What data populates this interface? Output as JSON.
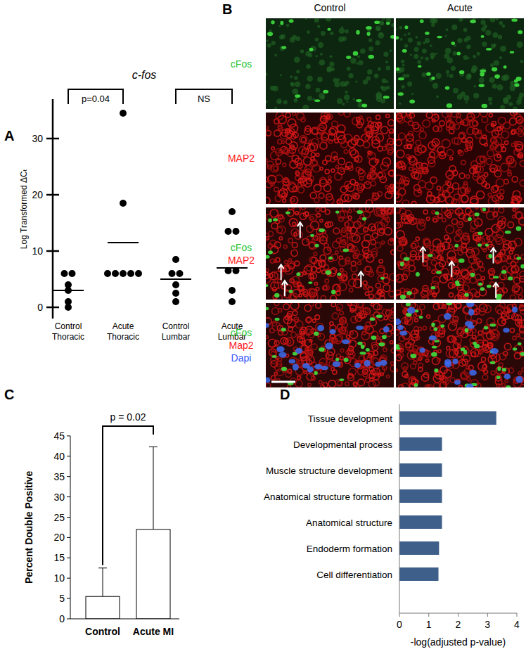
{
  "chart_data": [
    {
      "panel": "A",
      "type": "dot",
      "title": "c-fos",
      "ylabel": "Log Transformed ΔCₜ",
      "categories": [
        "Control Thoracic",
        "Acute Thoracic",
        "Control Lumbar",
        "Acute Lumbar"
      ],
      "values": [
        [
          6,
          6,
          4,
          3,
          1,
          0
        ],
        [
          34.5,
          18.5,
          6,
          6,
          6,
          6,
          6
        ],
        [
          8.5,
          6,
          6,
          4,
          2.5,
          1
        ],
        [
          17,
          13.5,
          13.5,
          6.5,
          6.5,
          3,
          1
        ]
      ],
      "means": [
        3,
        11.5,
        5,
        7
      ],
      "annotations": [
        "p=0.04",
        "NS"
      ],
      "color": "#000000",
      "marker": "circle",
      "ylim": [
        -2,
        37
      ],
      "yticks": [
        0,
        10,
        20,
        30
      ]
    },
    {
      "panel": "C",
      "type": "bar",
      "ylabel": "Percent Double Positive",
      "categories": [
        "Control",
        "Acute MI"
      ],
      "values": [
        5.5,
        22
      ],
      "errors": [
        7,
        20.3
      ],
      "annotations": [
        "p = 0.02"
      ],
      "color": "#ffffff",
      "ylim": [
        0,
        45
      ],
      "yticks": [
        0,
        5,
        10,
        15,
        20,
        25,
        30,
        35,
        40,
        45
      ]
    },
    {
      "panel": "D",
      "type": "bar",
      "orientation": "horizontal",
      "xlabel": "-log(adjusted p-value)",
      "categories": [
        "Tissue development",
        "Developmental process",
        "Muscle structure development",
        "Anatomical structure formation",
        "Anatomical structure",
        "Endoderm formation",
        "Cell differentiation"
      ],
      "values": [
        3.3,
        1.45,
        1.45,
        1.45,
        1.45,
        1.35,
        1.33
      ],
      "color": "#3e5f8a",
      "xlim": [
        0,
        4
      ],
      "xticks": [
        0,
        1,
        2,
        3,
        4
      ]
    }
  ],
  "images": {
    "panel": "B",
    "columns": [
      "Control",
      "Acute"
    ],
    "rows": [
      {
        "labels": [
          "cFos"
        ],
        "colors": [
          "#2fc42f"
        ]
      },
      {
        "labels": [
          "MAP2"
        ],
        "colors": [
          "#ff1a1a"
        ]
      },
      {
        "labels": [
          "cFos",
          "MAP2"
        ],
        "colors": [
          "#2fc42f",
          "#ff1a1a"
        ]
      },
      {
        "labels": [
          "cFos",
          "Map2",
          "Dapi"
        ],
        "colors": [
          "#2fc42f",
          "#ff1a1a",
          "#3355ff"
        ]
      }
    ]
  }
}
